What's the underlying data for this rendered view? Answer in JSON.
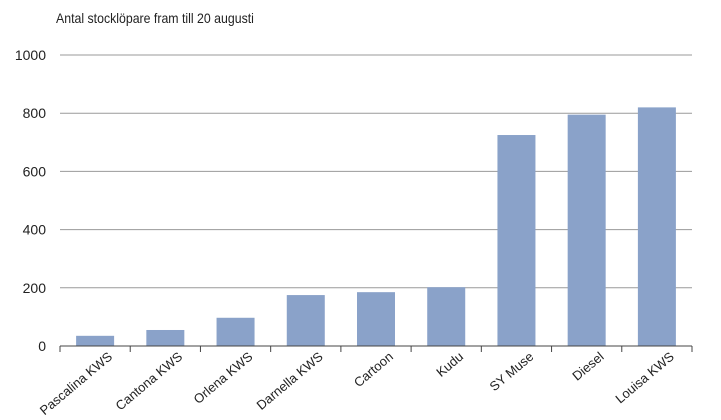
{
  "chart_data": {
    "type": "bar",
    "title": "Antal stocklöpare fram till 20 augusti",
    "xlabel": "",
    "ylabel": "",
    "categories": [
      "Pascalina KWS",
      "Cantona KWS",
      "Orlena KWS",
      "Darnella KWS",
      "Cartoon",
      "Kudu",
      "SY Muse",
      "Diesel",
      "Louisa KWS"
    ],
    "values": [
      35,
      55,
      97,
      175,
      185,
      202,
      725,
      795,
      820
    ],
    "ylim": [
      0,
      1000
    ],
    "yticks": [
      0,
      200,
      400,
      600,
      800,
      1000
    ],
    "grid": true,
    "bar_color": "#8aa2c9"
  }
}
